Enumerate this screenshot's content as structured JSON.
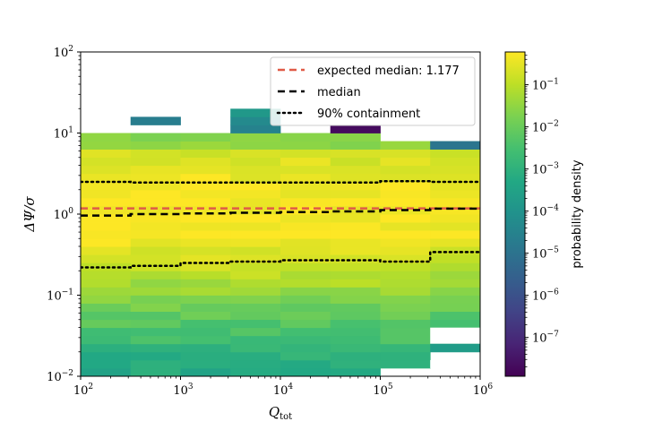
{
  "chart_data": {
    "type": "heatmap",
    "xlabel_main": "Q",
    "xlabel_sub": "tot",
    "ylabel": "ΔΨ/σ",
    "x_scale": "log",
    "y_scale": "log",
    "xlim": [
      100,
      1000000
    ],
    "ylim": [
      0.01,
      100
    ],
    "x_ticks": [
      {
        "value": 100,
        "base": "10",
        "exp": "2"
      },
      {
        "value": 1000,
        "base": "10",
        "exp": "3"
      },
      {
        "value": 10000,
        "base": "10",
        "exp": "4"
      },
      {
        "value": 100000,
        "base": "10",
        "exp": "5"
      },
      {
        "value": 1000000,
        "base": "10",
        "exp": "6"
      }
    ],
    "y_ticks": [
      {
        "value": 0.01,
        "base": "10",
        "exp": "−2"
      },
      {
        "value": 0.1,
        "base": "10",
        "exp": "−1"
      },
      {
        "value": 1,
        "base": "10",
        "exp": "0"
      },
      {
        "value": 10,
        "base": "10",
        "exp": "1"
      },
      {
        "value": 100,
        "base": "10",
        "exp": "2"
      }
    ],
    "colorbar": {
      "label": "probability density",
      "scale": "log",
      "range": [
        1.2e-08,
        0.6
      ],
      "colormap": [
        "#440154",
        "#482475",
        "#414487",
        "#355f8d",
        "#2a788e",
        "#21918c",
        "#22a884",
        "#44bf70",
        "#7ad151",
        "#bddf26",
        "#fde725"
      ],
      "ticks": [
        {
          "value": 1e-07,
          "base": "10",
          "exp": "−7"
        },
        {
          "value": 1e-06,
          "base": "10",
          "exp": "−6"
        },
        {
          "value": 1e-05,
          "base": "10",
          "exp": "−5"
        },
        {
          "value": 0.0001,
          "base": "10",
          "exp": "−4"
        },
        {
          "value": 0.001,
          "base": "10",
          "exp": "−3"
        },
        {
          "value": 0.01,
          "base": "10",
          "exp": "−2"
        },
        {
          "value": 0.1,
          "base": "10",
          "exp": "−1"
        }
      ]
    },
    "x_bins": [
      100,
      316,
      1000,
      3160,
      10000,
      31600,
      100000,
      316000,
      1000000
    ],
    "y_bin_log_width": 0.1,
    "hist_columns": [
      {
        "ylog_min": -2.0,
        "ylog_max": 1.0,
        "profile": "a",
        "scale": 1.0
      },
      {
        "ylog_min": -2.0,
        "ylog_max": 1.0,
        "profile": "a",
        "scale": 1.0
      },
      {
        "ylog_min": -2.0,
        "ylog_max": 1.0,
        "profile": "a",
        "scale": 1.0
      },
      {
        "ylog_min": -2.0,
        "ylog_max": 1.0,
        "profile": "a",
        "scale": 1.0
      },
      {
        "ylog_min": -2.0,
        "ylog_max": 1.0,
        "profile": "a",
        "scale": 1.0
      },
      {
        "ylog_min": -2.0,
        "ylog_max": 1.0,
        "profile": "a",
        "scale": 1.0
      },
      {
        "ylog_min": -1.9,
        "ylog_max": 0.9,
        "profile": "b",
        "scale": 1.0
      },
      {
        "ylog_min": -1.6,
        "ylog_max": 0.9,
        "profile": "c",
        "scale": 1.0
      }
    ],
    "extra_cells": [
      {
        "col": 1,
        "ylog_min": 1.1,
        "ylog_max": 1.2,
        "value": 2e-05
      },
      {
        "col": 3,
        "ylog_min": 1.0,
        "ylog_max": 1.1,
        "value": 3e-05
      },
      {
        "col": 3,
        "ylog_min": 1.1,
        "ylog_max": 1.2,
        "value": 5e-05
      },
      {
        "col": 3,
        "ylog_min": 1.2,
        "ylog_max": 1.3,
        "value": 0.00015
      },
      {
        "col": 5,
        "ylog_min": 1.0,
        "ylog_max": 1.1,
        "value": 2e-08
      },
      {
        "col": 7,
        "ylog_min": 0.8,
        "ylog_max": 0.9,
        "value": 1.2e-05
      },
      {
        "col": 7,
        "ylog_min": -1.7,
        "ylog_max": -1.6,
        "value": 0.0002
      }
    ],
    "series": [
      {
        "name": "expected median: 1.177",
        "style": "dashed",
        "color": "#e05a47",
        "x": [
          100,
          1000000
        ],
        "y": [
          1.177,
          1.177
        ]
      },
      {
        "name": "median",
        "style": "dashed",
        "color": "#000000",
        "x": [
          100,
          316,
          316,
          1000,
          1000,
          3160,
          3160,
          10000,
          10000,
          31600,
          31600,
          100000,
          100000,
          316000,
          316000,
          1000000
        ],
        "y": [
          0.96,
          0.96,
          1.0,
          1.0,
          1.02,
          1.02,
          1.04,
          1.04,
          1.06,
          1.06,
          1.08,
          1.08,
          1.12,
          1.12,
          1.17,
          1.17
        ]
      },
      {
        "name": "90% containment",
        "style": "dotted",
        "color": "#000000",
        "x": [
          100,
          316,
          316,
          1000,
          1000,
          3160,
          3160,
          10000,
          10000,
          31600,
          31600,
          100000,
          100000,
          316000,
          316000,
          1000000
        ],
        "y": [
          2.5,
          2.5,
          2.45,
          2.45,
          2.45,
          2.45,
          2.45,
          2.45,
          2.45,
          2.45,
          2.45,
          2.45,
          2.55,
          2.55,
          2.5,
          2.5
        ]
      },
      {
        "name": "",
        "style": "dotted",
        "color": "#000000",
        "x": [
          100,
          316,
          316,
          1000,
          1000,
          3160,
          3160,
          10000,
          10000,
          31600,
          31600,
          100000,
          100000,
          316000,
          316000,
          1000000
        ],
        "y": [
          0.22,
          0.22,
          0.23,
          0.23,
          0.25,
          0.25,
          0.26,
          0.26,
          0.27,
          0.27,
          0.27,
          0.27,
          0.26,
          0.26,
          0.34,
          0.34
        ]
      }
    ],
    "legend": {
      "placement": "top-right"
    }
  }
}
